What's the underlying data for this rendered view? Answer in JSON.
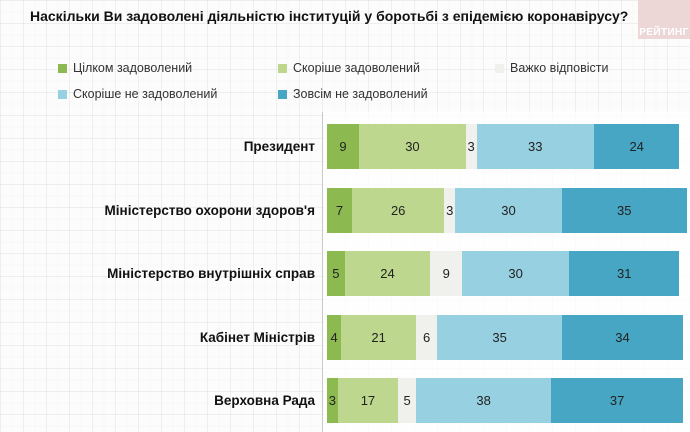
{
  "title": "Наскільки Ви задоволені діяльністю інституцій у боротьбі з епідемією коронавірусу?",
  "logo": {
    "text": "РЕЙТИНГ",
    "bg_color": "#ecd7d6",
    "text_color": "#ffffff"
  },
  "chart_data": {
    "type": "bar",
    "stacked": true,
    "orientation": "horizontal",
    "unit": "percent",
    "title": "Наскільки Ви задоволені діяльністю інституцій у боротьбі з епідемією коронавірусу?",
    "categories": [
      "Президент",
      "Міністерство охорони здоров'я",
      "Міністерство внутрішніх справ",
      "Кабінет Міністрів",
      "Верховна Рада"
    ],
    "series": [
      {
        "name": "Цілком задоволений",
        "color": "#8cba50",
        "values": [
          9,
          7,
          5,
          4,
          3
        ]
      },
      {
        "name": "Скоріше задоволений",
        "color": "#bdd88e",
        "values": [
          30,
          26,
          24,
          21,
          17
        ]
      },
      {
        "name": "Важко відповісти",
        "color": "#f0f0ed",
        "values": [
          3,
          3,
          9,
          6,
          5
        ]
      },
      {
        "name": "Скоріше не задоволений",
        "color": "#97d0e0",
        "values": [
          33,
          30,
          30,
          35,
          38
        ]
      },
      {
        "name": "Зовсім не задоволений",
        "color": "#47a6c4",
        "values": [
          24,
          35,
          31,
          34,
          37
        ]
      }
    ],
    "xlim": [
      0,
      100
    ],
    "legend_position": "top",
    "value_labels": "inside",
    "grid": false
  }
}
